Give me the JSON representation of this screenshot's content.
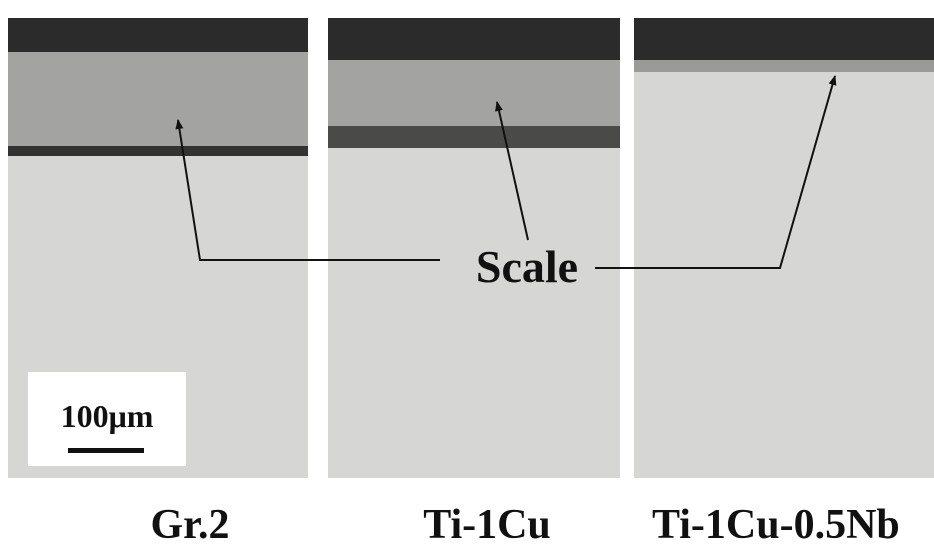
{
  "annotation": "Scale",
  "scale_bar": "100μm",
  "panels": [
    {
      "label": "Gr.2"
    },
    {
      "label": "Ti-1Cu"
    },
    {
      "label": "Ti-1Cu-0.5Nb"
    }
  ]
}
